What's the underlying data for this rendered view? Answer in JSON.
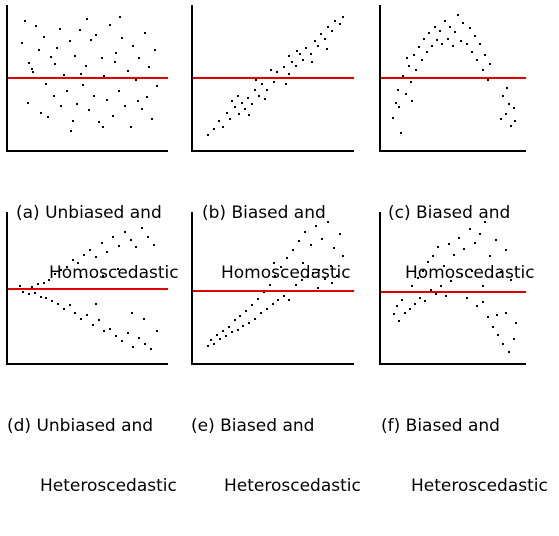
{
  "colors": {
    "baseline": "#e00000",
    "axis": "#000000",
    "point": "#000000"
  },
  "chart_data": [
    {
      "type": "scatter",
      "caption": [
        "(a) Unbiased and",
        "Homoscedastic"
      ],
      "baseline": 0,
      "ylim": [
        -1,
        1
      ],
      "xlim": [
        0,
        1
      ],
      "points": [
        [
          0.04,
          0.53
        ],
        [
          0.06,
          0.86
        ],
        [
          0.09,
          0.24
        ],
        [
          0.12,
          0.1
        ],
        [
          0.14,
          0.79
        ],
        [
          0.16,
          0.43
        ],
        [
          0.17,
          -0.5
        ],
        [
          0.19,
          0.62
        ],
        [
          0.21,
          -0.08
        ],
        [
          0.22,
          -0.57
        ],
        [
          0.24,
          0.33
        ],
        [
          0.26,
          -0.26
        ],
        [
          0.28,
          0.47
        ],
        [
          0.3,
          0.75
        ],
        [
          0.31,
          -0.4
        ],
        [
          0.33,
          0.06
        ],
        [
          0.35,
          -0.18
        ],
        [
          0.37,
          0.56
        ],
        [
          0.39,
          -0.62
        ],
        [
          0.41,
          0.34
        ],
        [
          0.42,
          -0.38
        ],
        [
          0.44,
          0.73
        ],
        [
          0.46,
          -0.09
        ],
        [
          0.48,
          0.2
        ],
        [
          0.5,
          -0.47
        ],
        [
          0.52,
          0.58
        ],
        [
          0.54,
          -0.25
        ],
        [
          0.55,
          0.66
        ],
        [
          0.57,
          -0.64
        ],
        [
          0.59,
          0.31
        ],
        [
          0.61,
          0.05
        ],
        [
          0.63,
          -0.32
        ],
        [
          0.65,
          0.81
        ],
        [
          0.67,
          -0.55
        ],
        [
          0.69,
          0.39
        ],
        [
          0.71,
          -0.18
        ],
        [
          0.73,
          0.61
        ],
        [
          0.75,
          -0.41
        ],
        [
          0.77,
          0.12
        ],
        [
          0.79,
          -0.71
        ],
        [
          0.81,
          0.5
        ],
        [
          0.83,
          -0.02
        ],
        [
          0.85,
          0.31
        ],
        [
          0.87,
          -0.45
        ],
        [
          0.89,
          0.69
        ],
        [
          0.9,
          -0.27
        ],
        [
          0.92,
          0.18
        ],
        [
          0.94,
          -0.6
        ],
        [
          0.96,
          0.43
        ],
        [
          0.97,
          -0.1
        ],
        [
          0.08,
          -0.36
        ],
        [
          0.27,
          0.22
        ],
        [
          0.38,
          -0.77
        ],
        [
          0.49,
          0.9
        ],
        [
          0.6,
          -0.72
        ],
        [
          0.72,
          0.92
        ],
        [
          0.84,
          -0.33
        ],
        [
          0.11,
          0.15
        ],
        [
          0.45,
          0.08
        ],
        [
          0.68,
          0.26
        ]
      ]
    },
    {
      "type": "scatter",
      "caption": [
        "(b) Biased and",
        "Homoscedastic"
      ],
      "baseline": 0,
      "ylim": [
        -1,
        1
      ],
      "xlim": [
        0,
        1
      ],
      "points": [
        [
          0.05,
          -0.84
        ],
        [
          0.09,
          -0.74
        ],
        [
          0.12,
          -0.63
        ],
        [
          0.15,
          -0.72
        ],
        [
          0.18,
          -0.51
        ],
        [
          0.2,
          -0.6
        ],
        [
          0.23,
          -0.42
        ],
        [
          0.26,
          -0.52
        ],
        [
          0.28,
          -0.36
        ],
        [
          0.3,
          -0.45
        ],
        [
          0.32,
          -0.28
        ],
        [
          0.35,
          -0.38
        ],
        [
          0.37,
          -0.17
        ],
        [
          0.4,
          -0.25
        ],
        [
          0.42,
          -0.08
        ],
        [
          0.45,
          -0.16
        ],
        [
          0.47,
          0.01
        ],
        [
          0.5,
          -0.05
        ],
        [
          0.52,
          0.1
        ],
        [
          0.55,
          0.02
        ],
        [
          0.57,
          0.18
        ],
        [
          0.6,
          0.08
        ],
        [
          0.62,
          0.26
        ],
        [
          0.65,
          0.2
        ],
        [
          0.68,
          0.37
        ],
        [
          0.7,
          0.28
        ],
        [
          0.72,
          0.47
        ],
        [
          0.75,
          0.38
        ],
        [
          0.78,
          0.56
        ],
        [
          0.8,
          0.49
        ],
        [
          0.82,
          0.67
        ],
        [
          0.85,
          0.59
        ],
        [
          0.87,
          0.78
        ],
        [
          0.9,
          0.72
        ],
        [
          0.92,
          0.86
        ],
        [
          0.95,
          0.82
        ],
        [
          0.97,
          0.92
        ],
        [
          0.38,
          -0.02
        ],
        [
          0.48,
          0.14
        ],
        [
          0.58,
          -0.08
        ],
        [
          0.25,
          -0.26
        ],
        [
          0.66,
          0.42
        ],
        [
          0.44,
          -0.3
        ],
        [
          0.33,
          -0.54
        ],
        [
          0.76,
          0.26
        ],
        [
          0.86,
          0.45
        ],
        [
          0.6,
          0.35
        ],
        [
          0.21,
          -0.33
        ]
      ]
    },
    {
      "type": "scatter",
      "caption": [
        "(c) Biased and",
        "Homoscedastic"
      ],
      "baseline": 0,
      "ylim": [
        -1,
        1
      ],
      "xlim": [
        0,
        1
      ],
      "points": [
        [
          0.03,
          -0.58
        ],
        [
          0.05,
          -0.36
        ],
        [
          0.07,
          -0.16
        ],
        [
          0.09,
          -0.8
        ],
        [
          0.11,
          0.04
        ],
        [
          0.13,
          -0.22
        ],
        [
          0.15,
          0.2
        ],
        [
          0.17,
          -0.04
        ],
        [
          0.19,
          0.36
        ],
        [
          0.21,
          0.14
        ],
        [
          0.23,
          0.48
        ],
        [
          0.25,
          0.28
        ],
        [
          0.27,
          0.6
        ],
        [
          0.29,
          0.4
        ],
        [
          0.31,
          0.68
        ],
        [
          0.33,
          0.5
        ],
        [
          0.35,
          0.78
        ],
        [
          0.37,
          0.58
        ],
        [
          0.39,
          0.72
        ],
        [
          0.41,
          0.52
        ],
        [
          0.43,
          0.86
        ],
        [
          0.45,
          0.6
        ],
        [
          0.47,
          0.78
        ],
        [
          0.49,
          0.5
        ],
        [
          0.51,
          0.7
        ],
        [
          0.53,
          0.95
        ],
        [
          0.55,
          0.56
        ],
        [
          0.57,
          0.84
        ],
        [
          0.6,
          0.52
        ],
        [
          0.62,
          0.76
        ],
        [
          0.64,
          0.4
        ],
        [
          0.66,
          0.64
        ],
        [
          0.68,
          0.28
        ],
        [
          0.7,
          0.52
        ],
        [
          0.72,
          0.14
        ],
        [
          0.74,
          0.36
        ],
        [
          0.76,
          -0.02
        ],
        [
          0.78,
          0.22
        ],
        [
          0.88,
          -0.26
        ],
        [
          0.9,
          -0.52
        ],
        [
          0.92,
          -0.38
        ],
        [
          0.94,
          -0.7
        ],
        [
          0.96,
          -0.44
        ],
        [
          0.86,
          -0.6
        ],
        [
          0.91,
          -0.14
        ],
        [
          0.97,
          -0.62
        ],
        [
          0.08,
          -0.42
        ],
        [
          0.22,
          0.02
        ],
        [
          0.18,
          -0.33
        ],
        [
          0.14,
          0.32
        ]
      ]
    },
    {
      "type": "scatter",
      "caption": [
        "(d) Unbiased and",
        "Heteroscedastic"
      ],
      "baseline": 0,
      "ylim": [
        -1,
        1
      ],
      "xlim": [
        0,
        1
      ],
      "points": [
        [
          0.03,
          0.05
        ],
        [
          0.05,
          -0.03
        ],
        [
          0.07,
          0.02
        ],
        [
          0.09,
          -0.06
        ],
        [
          0.11,
          0.04
        ],
        [
          0.13,
          -0.04
        ],
        [
          0.15,
          0.08
        ],
        [
          0.17,
          -0.1
        ],
        [
          0.19,
          0.1
        ],
        [
          0.21,
          -0.12
        ],
        [
          0.23,
          0.14
        ],
        [
          0.25,
          -0.16
        ],
        [
          0.27,
          0.22
        ],
        [
          0.29,
          -0.2
        ],
        [
          0.31,
          0.28
        ],
        [
          0.33,
          -0.28
        ],
        [
          0.35,
          0.32
        ],
        [
          0.37,
          -0.22
        ],
        [
          0.39,
          0.42
        ],
        [
          0.41,
          -0.34
        ],
        [
          0.43,
          0.38
        ],
        [
          0.45,
          -0.42
        ],
        [
          0.47,
          0.5
        ],
        [
          0.49,
          -0.36
        ],
        [
          0.51,
          0.56
        ],
        [
          0.53,
          -0.5
        ],
        [
          0.55,
          0.46
        ],
        [
          0.57,
          -0.44
        ],
        [
          0.59,
          0.66
        ],
        [
          0.61,
          -0.6
        ],
        [
          0.63,
          0.54
        ],
        [
          0.65,
          -0.56
        ],
        [
          0.67,
          0.74
        ],
        [
          0.69,
          -0.66
        ],
        [
          0.71,
          0.62
        ],
        [
          0.73,
          -0.74
        ],
        [
          0.75,
          0.82
        ],
        [
          0.77,
          -0.62
        ],
        [
          0.79,
          0.7
        ],
        [
          0.81,
          -0.82
        ],
        [
          0.83,
          0.6
        ],
        [
          0.85,
          -0.7
        ],
        [
          0.87,
          0.88
        ],
        [
          0.89,
          -0.78
        ],
        [
          0.91,
          0.74
        ],
        [
          0.93,
          -0.86
        ],
        [
          0.95,
          0.64
        ],
        [
          0.97,
          -0.6
        ],
        [
          0.6,
          0.2
        ],
        [
          0.8,
          -0.34
        ],
        [
          0.45,
          0.18
        ],
        [
          0.7,
          0.3
        ],
        [
          0.88,
          -0.42
        ],
        [
          0.55,
          -0.2
        ]
      ]
    },
    {
      "type": "scatter",
      "caption": [
        "(e) Biased and",
        "Heteroscedastic"
      ],
      "baseline": 0,
      "ylim": [
        -1,
        1
      ],
      "xlim": [
        0,
        1
      ],
      "points": [
        [
          0.05,
          -0.8
        ],
        [
          0.07,
          -0.72
        ],
        [
          0.09,
          -0.78
        ],
        [
          0.11,
          -0.64
        ],
        [
          0.13,
          -0.7
        ],
        [
          0.15,
          -0.58
        ],
        [
          0.17,
          -0.66
        ],
        [
          0.19,
          -0.52
        ],
        [
          0.21,
          -0.6
        ],
        [
          0.23,
          -0.42
        ],
        [
          0.25,
          -0.56
        ],
        [
          0.27,
          -0.36
        ],
        [
          0.29,
          -0.5
        ],
        [
          0.31,
          -0.28
        ],
        [
          0.33,
          -0.46
        ],
        [
          0.35,
          -0.2
        ],
        [
          0.37,
          -0.4
        ],
        [
          0.39,
          -0.1
        ],
        [
          0.41,
          -0.32
        ],
        [
          0.43,
          0.0
        ],
        [
          0.45,
          -0.26
        ],
        [
          0.47,
          0.1
        ],
        [
          0.49,
          -0.18
        ],
        [
          0.51,
          0.22
        ],
        [
          0.53,
          -0.12
        ],
        [
          0.55,
          0.34
        ],
        [
          0.57,
          -0.06
        ],
        [
          0.59,
          0.46
        ],
        [
          0.61,
          0.02
        ],
        [
          0.63,
          0.58
        ],
        [
          0.65,
          0.1
        ],
        [
          0.67,
          0.7
        ],
        [
          0.69,
          0.16
        ],
        [
          0.71,
          0.82
        ],
        [
          0.73,
          0.2
        ],
        [
          0.75,
          0.64
        ],
        [
          0.77,
          0.26
        ],
        [
          0.79,
          0.9
        ],
        [
          0.81,
          0.3
        ],
        [
          0.83,
          0.72
        ],
        [
          0.85,
          0.18
        ],
        [
          0.87,
          0.96
        ],
        [
          0.89,
          0.36
        ],
        [
          0.91,
          0.6
        ],
        [
          0.93,
          0.22
        ],
        [
          0.95,
          0.8
        ],
        [
          0.97,
          0.5
        ],
        [
          0.6,
          -0.12
        ],
        [
          0.7,
          0.4
        ],
        [
          0.8,
          0.06
        ],
        [
          0.9,
          0.12
        ],
        [
          0.5,
          0.4
        ]
      ]
    },
    {
      "type": "scatter",
      "caption": [
        "(f) Biased and",
        "Heteroscedastic"
      ],
      "baseline": 0,
      "ylim": [
        -1,
        1
      ],
      "xlim": [
        0,
        1
      ],
      "points": [
        [
          0.04,
          -0.32
        ],
        [
          0.06,
          -0.2
        ],
        [
          0.08,
          -0.42
        ],
        [
          0.1,
          -0.1
        ],
        [
          0.12,
          -0.3
        ],
        [
          0.14,
          0.02
        ],
        [
          0.16,
          -0.24
        ],
        [
          0.18,
          0.1
        ],
        [
          0.2,
          -0.16
        ],
        [
          0.22,
          0.2
        ],
        [
          0.24,
          -0.08
        ],
        [
          0.26,
          0.3
        ],
        [
          0.28,
          -0.12
        ],
        [
          0.3,
          0.42
        ],
        [
          0.32,
          0.04
        ],
        [
          0.34,
          0.5
        ],
        [
          0.36,
          -0.02
        ],
        [
          0.38,
          0.62
        ],
        [
          0.4,
          0.1
        ],
        [
          0.42,
          0.36
        ],
        [
          0.44,
          -0.04
        ],
        [
          0.46,
          0.66
        ],
        [
          0.48,
          0.16
        ],
        [
          0.5,
          0.52
        ],
        [
          0.52,
          0.02
        ],
        [
          0.54,
          0.74
        ],
        [
          0.56,
          0.24
        ],
        [
          0.58,
          0.6
        ],
        [
          0.6,
          -0.08
        ],
        [
          0.62,
          0.86
        ],
        [
          0.64,
          0.3
        ],
        [
          0.66,
          0.68
        ],
        [
          0.68,
          -0.2
        ],
        [
          0.7,
          0.8
        ],
        [
          0.72,
          0.1
        ],
        [
          0.74,
          0.96
        ],
        [
          0.76,
          -0.36
        ],
        [
          0.78,
          0.5
        ],
        [
          0.8,
          -0.52
        ],
        [
          0.82,
          0.72
        ],
        [
          0.84,
          -0.64
        ],
        [
          0.86,
          0.28
        ],
        [
          0.88,
          -0.78
        ],
        [
          0.9,
          0.58
        ],
        [
          0.92,
          -0.9
        ],
        [
          0.94,
          0.18
        ],
        [
          0.96,
          -0.7
        ],
        [
          0.98,
          -0.46
        ],
        [
          0.83,
          -0.34
        ],
        [
          0.9,
          -0.3
        ],
        [
          0.72,
          -0.14
        ]
      ]
    }
  ]
}
